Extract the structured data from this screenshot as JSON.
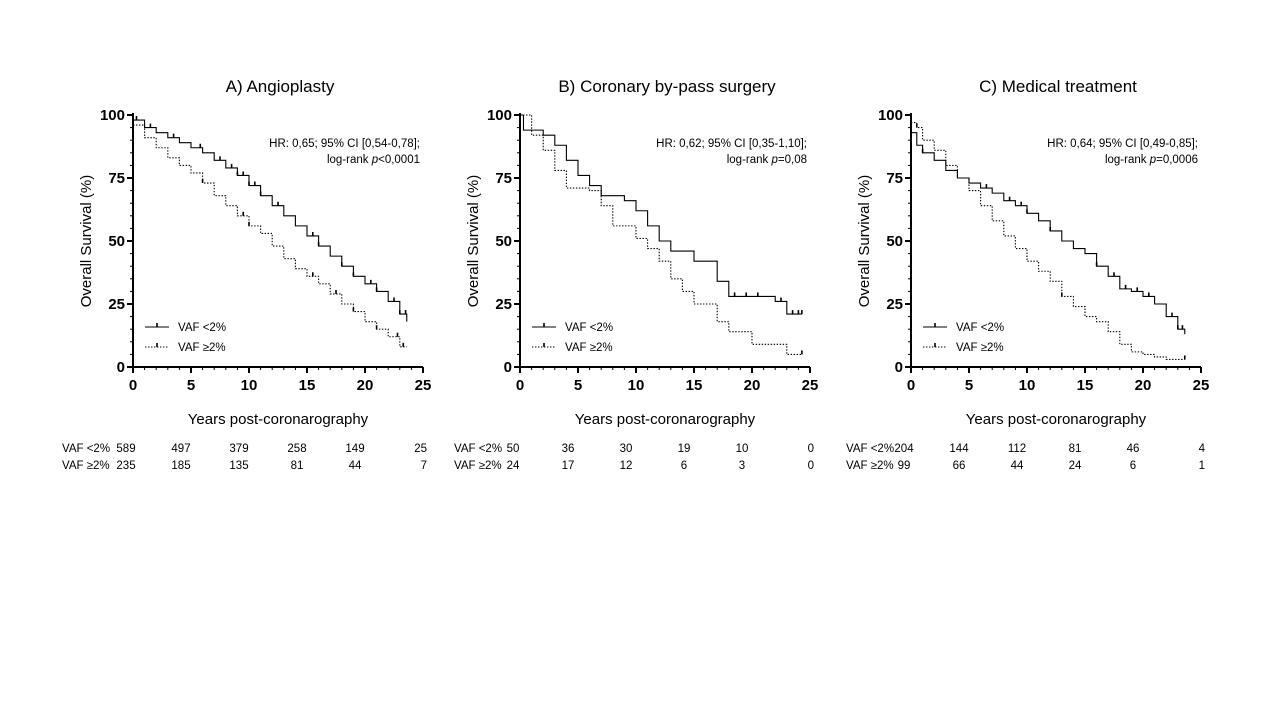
{
  "chart_data": [
    {
      "type": "line",
      "title": "A) Angioplasty",
      "xlabel": "Years post-coronarography",
      "ylabel": "Overall Survival (%)",
      "xlim": [
        0,
        25
      ],
      "ylim": [
        0,
        100
      ],
      "xticks": [
        0,
        5,
        10,
        15,
        20,
        25
      ],
      "yticks": [
        0,
        25,
        50,
        75,
        100
      ],
      "annotation": {
        "line1": "HR: 0,65; 95% CI [0,54-0,78];",
        "line2_prefix": "log-rank ",
        "line2_p": "p",
        "line2_value": "<0,0001"
      },
      "legend_position": "bottom-left",
      "series": [
        {
          "name": "VAF <2%",
          "style": "solid",
          "x": [
            0,
            1,
            2,
            3,
            4,
            5,
            6,
            7,
            8,
            9,
            10,
            11,
            12,
            13,
            14,
            15,
            16,
            17,
            18,
            19,
            20,
            21,
            22,
            23,
            23.6
          ],
          "y": [
            98,
            95,
            93,
            91,
            89,
            87,
            85,
            82,
            79,
            76,
            72,
            68,
            64,
            60,
            56,
            52,
            48,
            44,
            40,
            36,
            33,
            30,
            26,
            21,
            18
          ],
          "censor_x": [
            0.3,
            1.5,
            3.5,
            5.8,
            7.5,
            8.5,
            9,
            9.5,
            10,
            10.5,
            11,
            12.5,
            15.5,
            16,
            18,
            19,
            20.5,
            21,
            22.5,
            23,
            23.5
          ]
        },
        {
          "name": "VAF ≥2%",
          "style": "dotted",
          "x": [
            0,
            1,
            2,
            3,
            4,
            5,
            6,
            7,
            8,
            9,
            10,
            11,
            12,
            13,
            14,
            15,
            16,
            17,
            18,
            19,
            20,
            21,
            22,
            23,
            23.6
          ],
          "y": [
            96,
            91,
            87,
            83,
            80,
            77,
            73,
            68,
            64,
            60,
            56,
            53,
            48,
            43,
            39,
            36,
            33,
            29,
            25,
            22,
            18,
            15,
            12,
            8,
            8
          ],
          "censor_x": [
            6,
            9.5,
            10,
            15.5,
            17.5,
            19,
            21,
            22.8,
            23.3
          ]
        }
      ],
      "risk_table": {
        "times": [
          0,
          5,
          10,
          15,
          20,
          25
        ],
        "rows": [
          {
            "label": "VAF <2%",
            "values": [
              "589",
              "497",
              "379",
              "258",
              "149",
              "25"
            ]
          },
          {
            "label": "VAF ≥2%",
            "values": [
              "235",
              "185",
              "135",
              "81",
              "44",
              "7"
            ]
          }
        ]
      }
    },
    {
      "type": "line",
      "title": "B) Coronary by-pass surgery",
      "xlabel": "Years post-coronarography",
      "ylabel": "Overall Survival (%)",
      "xlim": [
        0,
        25
      ],
      "ylim": [
        0,
        100
      ],
      "xticks": [
        0,
        5,
        10,
        15,
        20,
        25
      ],
      "yticks": [
        0,
        25,
        50,
        75,
        100
      ],
      "annotation": {
        "line1": "HR: 0,62; 95% CI [0,35-1,10];",
        "line2_prefix": "log-rank ",
        "line2_p": "p",
        "line2_value": "=0,08"
      },
      "legend_position": "bottom-left",
      "series": [
        {
          "name": "VAF <2%",
          "style": "solid",
          "x": [
            0,
            0.3,
            2,
            3,
            4,
            5,
            6,
            7,
            8,
            9,
            10,
            11,
            12,
            13,
            15,
            17,
            18,
            20,
            22,
            23,
            24.3
          ],
          "y": [
            100,
            94,
            92,
            88,
            82,
            76,
            72,
            68,
            68,
            66,
            62,
            56,
            50,
            46,
            42,
            34,
            28,
            28,
            26,
            21,
            21
          ],
          "censor_x": [
            18.5,
            19.5,
            20.5,
            22.5,
            23.5,
            24,
            24.3
          ]
        },
        {
          "name": "VAF ≥2%",
          "style": "dotted",
          "x": [
            0,
            1,
            2,
            3,
            4,
            5,
            6,
            7,
            8,
            9,
            10,
            11,
            12,
            13,
            14,
            15,
            16,
            17,
            18,
            20,
            22,
            23,
            24.3
          ],
          "y": [
            100,
            92,
            86,
            78,
            71,
            71,
            70,
            64,
            56,
            56,
            51,
            47,
            42,
            35,
            30,
            25,
            25,
            18,
            14,
            9,
            9,
            5,
            5
          ],
          "censor_x": [
            24.3
          ]
        }
      ],
      "risk_table": {
        "times": [
          0,
          5,
          10,
          15,
          20,
          25
        ],
        "rows": [
          {
            "label": "VAF <2%",
            "values": [
              "50",
              "36",
              "30",
              "19",
              "10",
              "0"
            ]
          },
          {
            "label": "VAF ≥2%",
            "values": [
              "24",
              "17",
              "12",
              "6",
              "3",
              "0"
            ]
          }
        ]
      }
    },
    {
      "type": "line",
      "title": "C) Medical treatment",
      "xlabel": "Years post-coronarography",
      "ylabel": "Overall Survival (%)",
      "xlim": [
        0,
        25
      ],
      "ylim": [
        0,
        100
      ],
      "xticks": [
        0,
        5,
        10,
        15,
        20,
        25
      ],
      "yticks": [
        0,
        25,
        50,
        75,
        100
      ],
      "annotation": {
        "line1": "HR: 0,64; 95% CI [0,49-0,85];",
        "line2_prefix": "log-rank ",
        "line2_p": "p",
        "line2_value": "=0,0006"
      },
      "legend_position": "bottom-left",
      "series": [
        {
          "name": "VAF <2%",
          "style": "solid",
          "x": [
            0,
            0.5,
            1,
            2,
            3,
            4,
            5,
            6,
            7,
            8,
            9,
            10,
            11,
            12,
            13,
            14,
            15,
            16,
            17,
            18,
            19,
            20,
            21,
            22,
            23,
            23.6
          ],
          "y": [
            93,
            88,
            85,
            82,
            78,
            75,
            73,
            71,
            69,
            66,
            64,
            61,
            58,
            54,
            50,
            47,
            45,
            40,
            36,
            31,
            30,
            28,
            25,
            20,
            15,
            13
          ],
          "censor_x": [
            1,
            6.5,
            8.5,
            9.5,
            10,
            12,
            16,
            17.5,
            18.5,
            19.5,
            20.5,
            22.5,
            23,
            23.4
          ]
        },
        {
          "name": "VAF ≥2%",
          "style": "dotted",
          "x": [
            0,
            0.5,
            1,
            2,
            3,
            4,
            5,
            6,
            7,
            8,
            9,
            10,
            11,
            12,
            13,
            14,
            15,
            16,
            17,
            18,
            19,
            20,
            21,
            22,
            23,
            23.6
          ],
          "y": [
            97,
            95,
            90,
            86,
            80,
            75,
            70,
            64,
            58,
            52,
            47,
            42,
            38,
            34,
            28,
            24,
            20,
            18,
            14,
            9,
            6,
            5,
            4,
            3,
            3,
            3
          ],
          "censor_x": [
            0.5,
            13,
            23.6
          ]
        }
      ],
      "risk_table": {
        "times": [
          0,
          5,
          10,
          15,
          20,
          25
        ],
        "rows": [
          {
            "label": "VAF <2%",
            "values": [
              "204",
              "144",
              "112",
              "81",
              "46",
              "4"
            ]
          },
          {
            "label": "VAF ≥2%",
            "values": [
              "99",
              "66",
              "44",
              "24",
              "6",
              "1"
            ]
          }
        ]
      }
    }
  ]
}
